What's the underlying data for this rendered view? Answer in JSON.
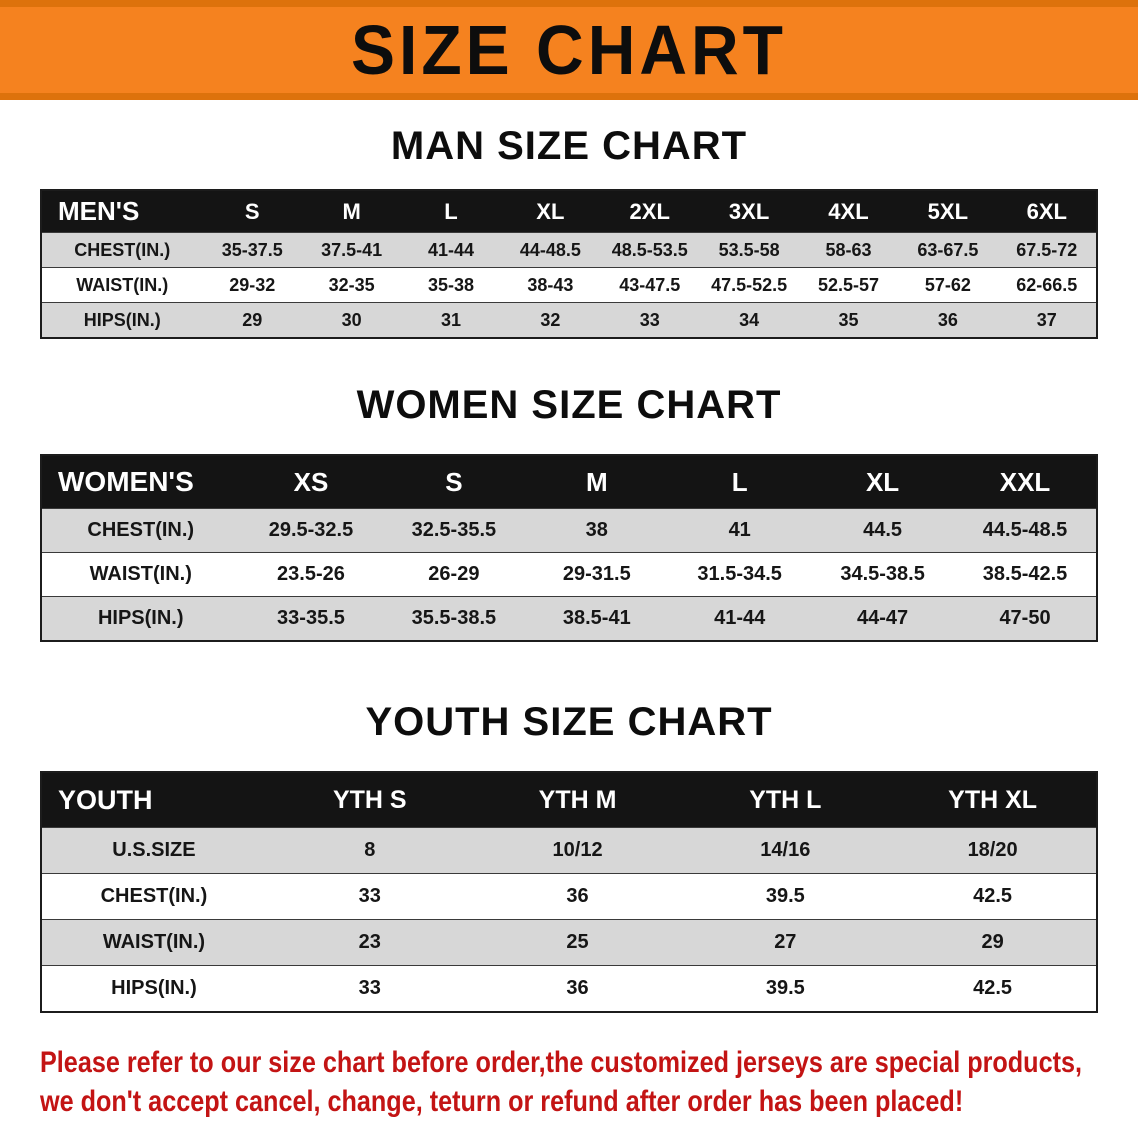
{
  "banner": {
    "title": "SIZE CHART"
  },
  "colors": {
    "banner_bg": "#f5821f",
    "banner_edge": "#dd720c",
    "table_header_bg": "#141414",
    "row_stripe": "#d7d7d7",
    "footer_text": "#c31414"
  },
  "tables": [
    {
      "title": "MAN SIZE CHART",
      "header": [
        "MEN'S",
        "S",
        "M",
        "L",
        "XL",
        "2XL",
        "3XL",
        "4XL",
        "5XL",
        "6XL"
      ],
      "rows": [
        {
          "label": "CHEST(IN.)",
          "values": [
            "35-37.5",
            "37.5-41",
            "41-44",
            "44-48.5",
            "48.5-53.5",
            "53.5-58",
            "58-63",
            "63-67.5",
            "67.5-72"
          ]
        },
        {
          "label": "WAIST(IN.)",
          "values": [
            "29-32",
            "32-35",
            "35-38",
            "38-43",
            "43-47.5",
            "47.5-52.5",
            "52.5-57",
            "57-62",
            "62-66.5"
          ]
        },
        {
          "label": "HIPS(IN.)",
          "values": [
            "29",
            "30",
            "31",
            "32",
            "33",
            "34",
            "35",
            "36",
            "37"
          ]
        }
      ]
    },
    {
      "title": "WOMEN SIZE CHART",
      "header": [
        "WOMEN'S",
        "XS",
        "S",
        "M",
        "L",
        "XL",
        "XXL"
      ],
      "rows": [
        {
          "label": "CHEST(IN.)",
          "values": [
            "29.5-32.5",
            "32.5-35.5",
            "38",
            "41",
            "44.5",
            "44.5-48.5"
          ]
        },
        {
          "label": "WAIST(IN.)",
          "values": [
            "23.5-26",
            "26-29",
            "29-31.5",
            "31.5-34.5",
            "34.5-38.5",
            "38.5-42.5"
          ]
        },
        {
          "label": "HIPS(IN.)",
          "values": [
            "33-35.5",
            "35.5-38.5",
            "38.5-41",
            "41-44",
            "44-47",
            "47-50"
          ]
        }
      ]
    },
    {
      "title": "YOUTH SIZE CHART",
      "header": [
        "YOUTH",
        "YTH S",
        "YTH M",
        "YTH L",
        "YTH XL"
      ],
      "rows": [
        {
          "label": "U.S.SIZE",
          "values": [
            "8",
            "10/12",
            "14/16",
            "18/20"
          ]
        },
        {
          "label": "CHEST(IN.)",
          "values": [
            "33",
            "36",
            "39.5",
            "42.5"
          ]
        },
        {
          "label": "WAIST(IN.)",
          "values": [
            "23",
            "25",
            "27",
            "29"
          ]
        },
        {
          "label": "HIPS(IN.)",
          "values": [
            "33",
            "36",
            "39.5",
            "42.5"
          ]
        }
      ]
    }
  ],
  "footer": {
    "line1": "Please refer to our size chart before order,the customized jerseys are special products,",
    "line2": "we don't accept cancel, change, teturn or refund after order has been placed!"
  }
}
